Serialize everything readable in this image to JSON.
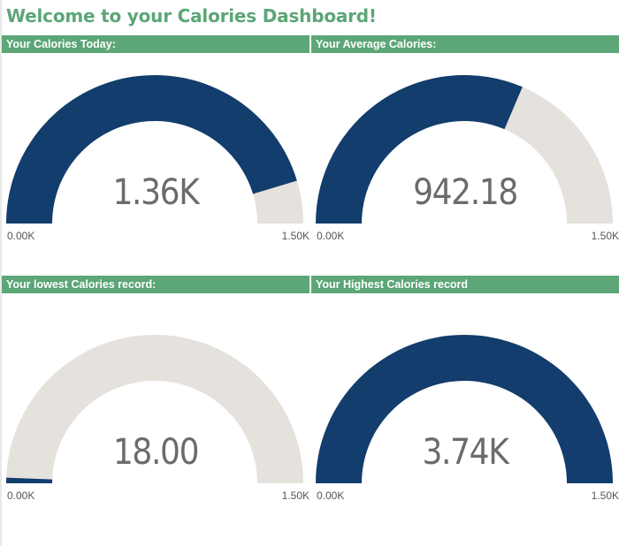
{
  "dashboard": {
    "title": "Welcome to your Calories Dashboard!"
  },
  "colors": {
    "header_bg": "#5ca677",
    "gauge_fill": "#123d6c",
    "gauge_track": "#e5e1dc"
  },
  "gauges": [
    {
      "title": "Your Calories Today:",
      "display": "1.36K",
      "value": 1360,
      "min": 0,
      "max": 1500,
      "min_label": "0.00K",
      "max_label": "1.50K"
    },
    {
      "title": "Your Average Calories:",
      "display": "942.18",
      "value": 942.18,
      "min": 0,
      "max": 1500,
      "min_label": "0.00K",
      "max_label": "1.50K"
    },
    {
      "title": "Your lowest Calories record:",
      "display": "18.00",
      "value": 18,
      "min": 0,
      "max": 1500,
      "min_label": "0.00K",
      "max_label": "1.50K"
    },
    {
      "title": "Your Highest Calories record",
      "display": "3.74K",
      "value": 3740,
      "min": 0,
      "max": 1500,
      "min_label": "0.00K",
      "max_label": "1.50K"
    }
  ]
}
